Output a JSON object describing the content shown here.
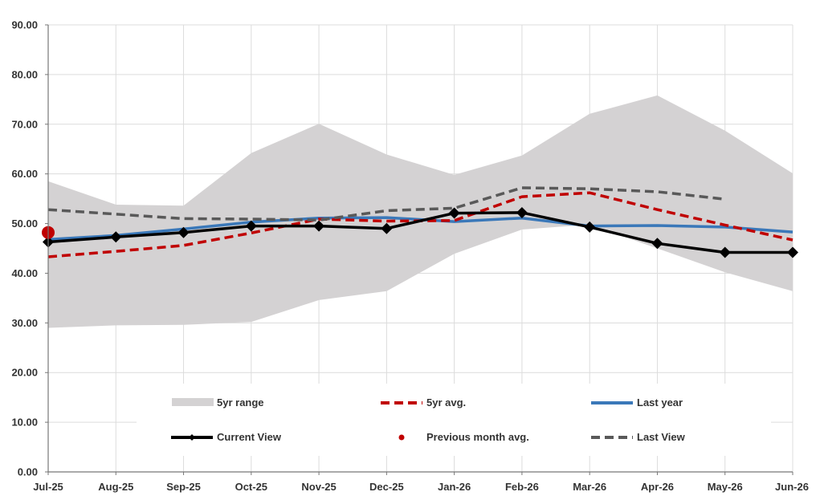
{
  "chart_data": {
    "type": "line",
    "title": "",
    "xlabel": "",
    "ylabel": "",
    "ylim": [
      0,
      90
    ],
    "grid": true,
    "legend_position": "bottom-center (inside plot)",
    "categories": [
      "Jul-25",
      "Aug-25",
      "Sep-25",
      "Oct-25",
      "Nov-25",
      "Dec-25",
      "Jan-26",
      "Feb-26",
      "Mar-26",
      "Apr-26",
      "May-26",
      "Jun-26"
    ],
    "y_ticks": [
      "0.00",
      "10.00",
      "20.00",
      "30.00",
      "40.00",
      "50.00",
      "60.00",
      "70.00",
      "80.00",
      "90.00"
    ],
    "range": {
      "name": "5yr range",
      "color": "#d4d2d3",
      "low": [
        29.0,
        29.5,
        29.6,
        30.2,
        34.6,
        36.4,
        43.9,
        48.8,
        49.8,
        45.0,
        40.2,
        36.4
      ],
      "high": [
        58.5,
        53.8,
        53.6,
        64.2,
        70.1,
        63.9,
        59.8,
        63.7,
        72.1,
        75.8,
        68.7,
        60.1
      ]
    },
    "series": [
      {
        "name": "5yr avg.",
        "color": "#c00000",
        "style": "dashed",
        "values": [
          43.3,
          44.4,
          45.6,
          48.1,
          50.9,
          50.5,
          50.6,
          55.4,
          56.2,
          52.8,
          49.7,
          46.7
        ]
      },
      {
        "name": "Last year",
        "color": "#3a78b9",
        "style": "solid",
        "values": [
          46.8,
          47.6,
          48.9,
          50.3,
          51.1,
          51.2,
          50.4,
          51.1,
          49.5,
          49.6,
          49.3,
          48.3
        ]
      },
      {
        "name": "Last View",
        "color": "#595959",
        "style": "dashed",
        "values": [
          52.8,
          51.9,
          51.0,
          50.9,
          50.7,
          52.6,
          53.1,
          57.2,
          57.0,
          56.4,
          54.9,
          null
        ]
      },
      {
        "name": "Current View",
        "color": "#000000",
        "style": "solid-marker",
        "values": [
          46.3,
          47.3,
          48.2,
          49.5,
          49.5,
          49.0,
          52.1,
          52.2,
          49.3,
          46.0,
          44.2,
          44.2
        ]
      }
    ],
    "points": [
      {
        "name": "Previous month avg.",
        "color": "#c00000",
        "x": "Jul-25",
        "value": 48.2
      }
    ],
    "legend": {
      "range": "5yr range",
      "avg": "5yr avg.",
      "last_year": "Last year",
      "current": "Current View",
      "prev_month": "Previous month avg.",
      "last_view": "Last View"
    }
  }
}
